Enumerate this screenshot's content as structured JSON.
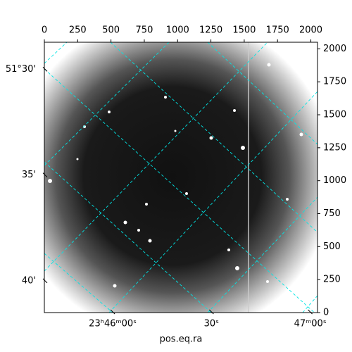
{
  "chart_data": {
    "type": "image",
    "xlabel": "pos.eq.ra",
    "xlim": [
      0,
      2050
    ],
    "ylim": [
      0,
      2050
    ],
    "xticks": [
      0,
      250,
      500,
      750,
      1000,
      1250,
      1500,
      1750,
      2000
    ],
    "yticks": [
      0,
      250,
      500,
      750,
      1000,
      1250,
      1500,
      1750,
      2000
    ],
    "wcs_xticks": [
      {
        "value": 513,
        "label": "23ʰ46ᵐ00ˢ"
      },
      {
        "value": 1254,
        "label": "30ˢ"
      },
      {
        "value": 1995,
        "label": "47ᵐ00ˢ"
      }
    ],
    "wcs_yticks": [
      {
        "value": 1845,
        "label": "51°30'"
      },
      {
        "value": 1043,
        "label": "35'"
      },
      {
        "value": 241,
        "label": "40'"
      }
    ],
    "grid_color": "#00e5e5"
  }
}
